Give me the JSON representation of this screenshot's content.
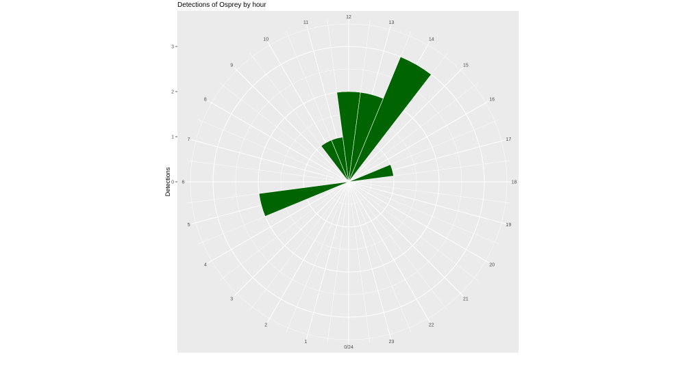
{
  "chart_data": {
    "type": "bar",
    "coord": "polar",
    "title": "Detections of Osprey by hour",
    "xlabel": "",
    "ylabel": "Detections",
    "ylim": [
      0,
      3.6
    ],
    "y_ticks": [
      "0",
      "1",
      "2",
      "3"
    ],
    "x_tick_labels": [
      "0/24",
      "1",
      "2",
      "3",
      "4",
      "5",
      "6",
      "7",
      "8",
      "9",
      "10",
      "11",
      "12",
      "13",
      "14",
      "15",
      "16",
      "17",
      "18",
      "19",
      "20",
      "21",
      "22",
      "23"
    ],
    "categories": [
      0,
      1,
      2,
      3,
      4,
      5,
      6,
      7,
      8,
      9,
      10,
      11,
      12,
      13,
      14,
      15,
      16,
      17,
      18,
      19,
      20,
      21,
      22,
      23
    ],
    "values": [
      0,
      0,
      0,
      0,
      0,
      2,
      0,
      0,
      0,
      0,
      1,
      1,
      2,
      2,
      3,
      0,
      0,
      1,
      0,
      0,
      0,
      0,
      0,
      0
    ],
    "bar_color": "#006400",
    "panel_bg": "#ebebeb",
    "grid": true,
    "legend": "none"
  }
}
